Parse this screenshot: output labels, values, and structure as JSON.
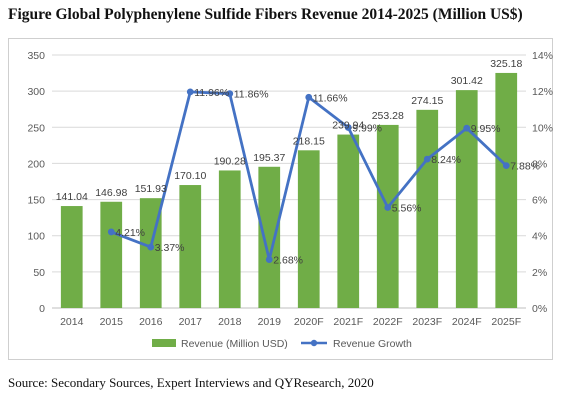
{
  "title": "Figure Global Polyphenylene Sulfide Fibers Revenue 2014-2025 (Million US$)",
  "source": "Source: Secondary Sources, Expert Interviews and QYResearch, 2020",
  "colors": {
    "bar": "#70ad47",
    "line": "#4472c4",
    "grid": "#d9d9d9",
    "axis_text": "#595959"
  },
  "chart_data": {
    "type": "bar",
    "categories": [
      "2014",
      "2015",
      "2016",
      "2017",
      "2018",
      "2019",
      "2020F",
      "2021F",
      "2022F",
      "2023F",
      "2024F",
      "2025F"
    ],
    "series": [
      {
        "name": "Revenue (Million USD)",
        "type": "bar",
        "axis": "left",
        "values": [
          141.04,
          146.98,
          151.93,
          170.1,
          190.28,
          195.37,
          218.15,
          239.94,
          253.28,
          274.15,
          301.42,
          325.18
        ],
        "labels": [
          "141.04",
          "146.98",
          "151.93",
          "170.10",
          "190.28",
          "195.37",
          "218.15",
          "239.94",
          "253.28",
          "274.15",
          "301.42",
          "325.18"
        ]
      },
      {
        "name": "Revenue Growth",
        "type": "line",
        "axis": "right",
        "values": [
          null,
          4.21,
          3.37,
          11.96,
          11.86,
          2.68,
          11.66,
          9.99,
          5.56,
          8.24,
          9.95,
          7.88
        ],
        "labels": [
          "",
          "4.21%",
          "3.37%",
          "11.96%",
          "11.86%",
          "2.68%",
          "11.66%",
          "9.99%",
          "5.56%",
          "8.24%",
          "9.95%",
          "7.88%"
        ]
      }
    ],
    "y_left": {
      "min": 0,
      "max": 350,
      "ticks": [
        0,
        50,
        100,
        150,
        200,
        250,
        300,
        350
      ],
      "tick_labels": [
        "0",
        "50",
        "100",
        "150",
        "200",
        "250",
        "300",
        "350"
      ]
    },
    "y_right": {
      "min": 0,
      "max": 14,
      "ticks": [
        0,
        2,
        4,
        6,
        8,
        10,
        12,
        14
      ],
      "tick_labels": [
        "0%",
        "2%",
        "4%",
        "6%",
        "8%",
        "10%",
        "12%",
        "14%"
      ]
    },
    "grid": true,
    "legend": "bottom"
  }
}
